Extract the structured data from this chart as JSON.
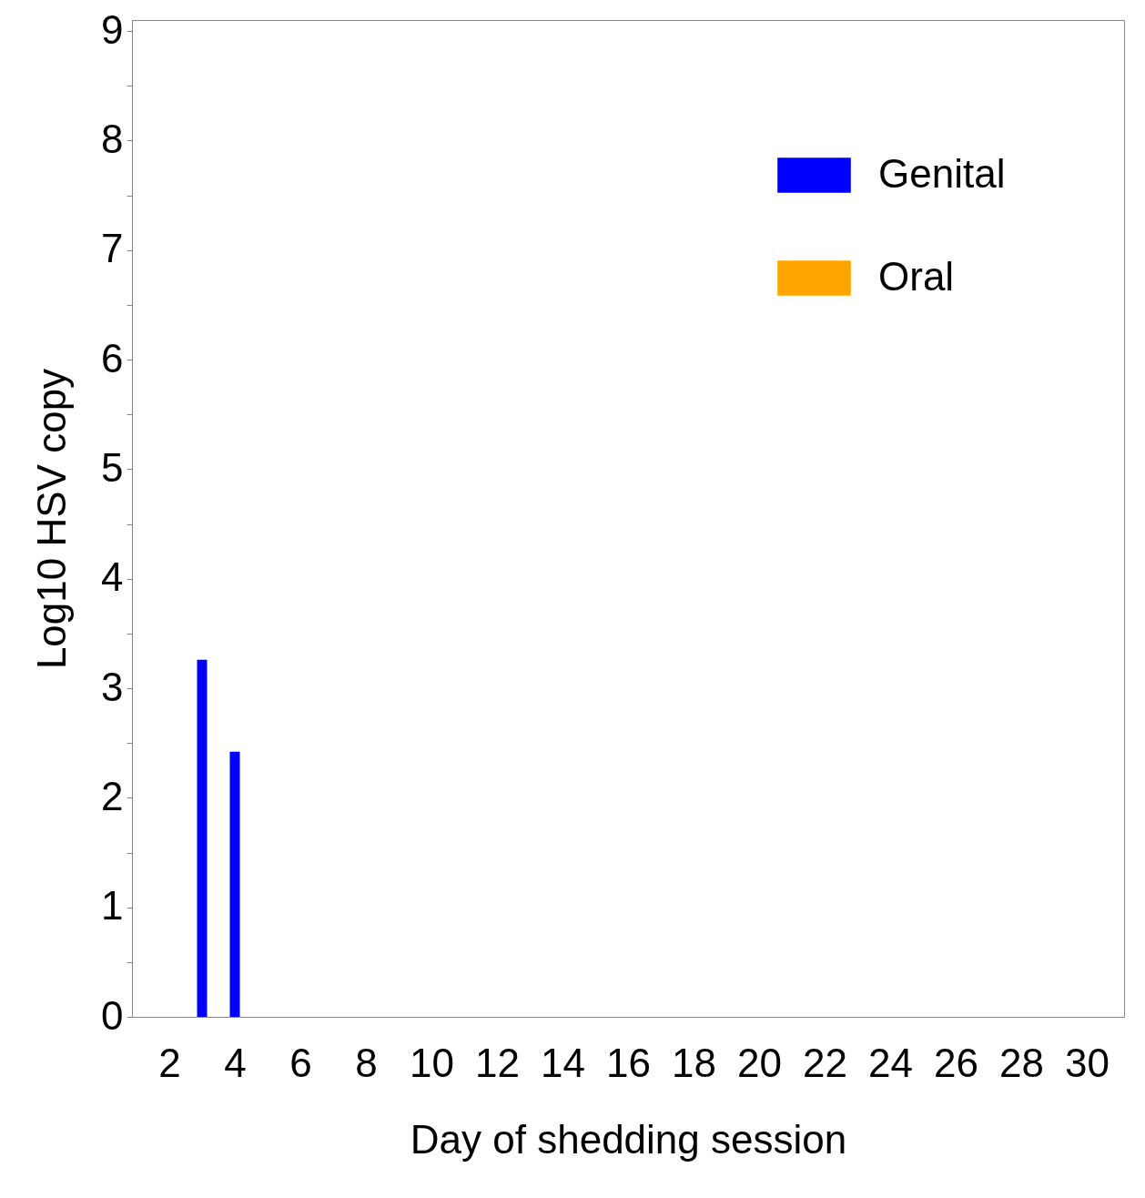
{
  "chart_data": {
    "type": "bar",
    "xlabel": "Day of shedding session",
    "ylabel": "Log10 HSV copy",
    "x": [
      3,
      4
    ],
    "series": [
      {
        "name": "Genital",
        "color": "#0000ff",
        "values": [
          3.26,
          2.42
        ]
      },
      {
        "name": "Oral",
        "color": "#ffa500",
        "values": [
          null,
          null
        ]
      }
    ],
    "xlim": [
      1,
      31
    ],
    "xticks": [
      2,
      4,
      6,
      8,
      10,
      12,
      14,
      16,
      18,
      20,
      22,
      24,
      26,
      28,
      30
    ],
    "ylim": [
      0,
      9.1
    ],
    "yticks": [
      0,
      {
        "value": 0.5,
        "label": null
      },
      1,
      {
        "value": 1.5,
        "label": null
      },
      2,
      {
        "value": 2.5,
        "label": null
      },
      3,
      {
        "value": 3.5,
        "label": null
      },
      4,
      {
        "value": 4.5,
        "label": null
      },
      5,
      {
        "value": 5.5,
        "label": null
      },
      6,
      {
        "value": 6.5,
        "label": null
      },
      7,
      {
        "value": 7.5,
        "label": null
      },
      8,
      {
        "value": 8.5,
        "label": null
      },
      9
    ],
    "legend": "top right",
    "grid": false
  }
}
